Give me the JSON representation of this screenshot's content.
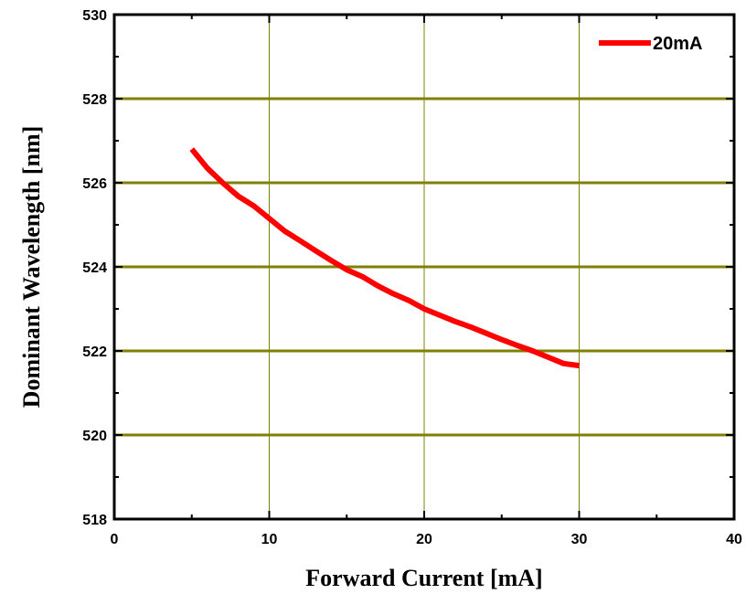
{
  "chart_data": {
    "type": "line",
    "xlabel": "Forward Current [mA]",
    "ylabel": "Dominant Wavelength [nm]",
    "xlim": [
      0,
      40
    ],
    "ylim": [
      518,
      530
    ],
    "x_ticks": [
      0,
      10,
      20,
      30,
      40
    ],
    "y_ticks": [
      518,
      520,
      522,
      524,
      526,
      528,
      530
    ],
    "grid": "major gridlines (vertical and horizontal)",
    "legend_position": "top-right",
    "colors": {
      "series": "#ff0000",
      "grid": "#808000",
      "axis": "#000000"
    },
    "series": [
      {
        "name": "20mA",
        "x": [
          5,
          6,
          7,
          8,
          9,
          10,
          11,
          12,
          13,
          14,
          15,
          16,
          17,
          18,
          19,
          20,
          21,
          22,
          23,
          24,
          25,
          26,
          27,
          28,
          29,
          30
        ],
        "y": [
          526.8,
          526.35,
          526.0,
          525.68,
          525.45,
          525.15,
          524.85,
          524.62,
          524.38,
          524.15,
          523.93,
          523.77,
          523.55,
          523.36,
          523.2,
          523.0,
          522.85,
          522.7,
          522.57,
          522.42,
          522.27,
          522.13,
          522.0,
          521.85,
          521.7,
          521.65
        ]
      }
    ]
  }
}
